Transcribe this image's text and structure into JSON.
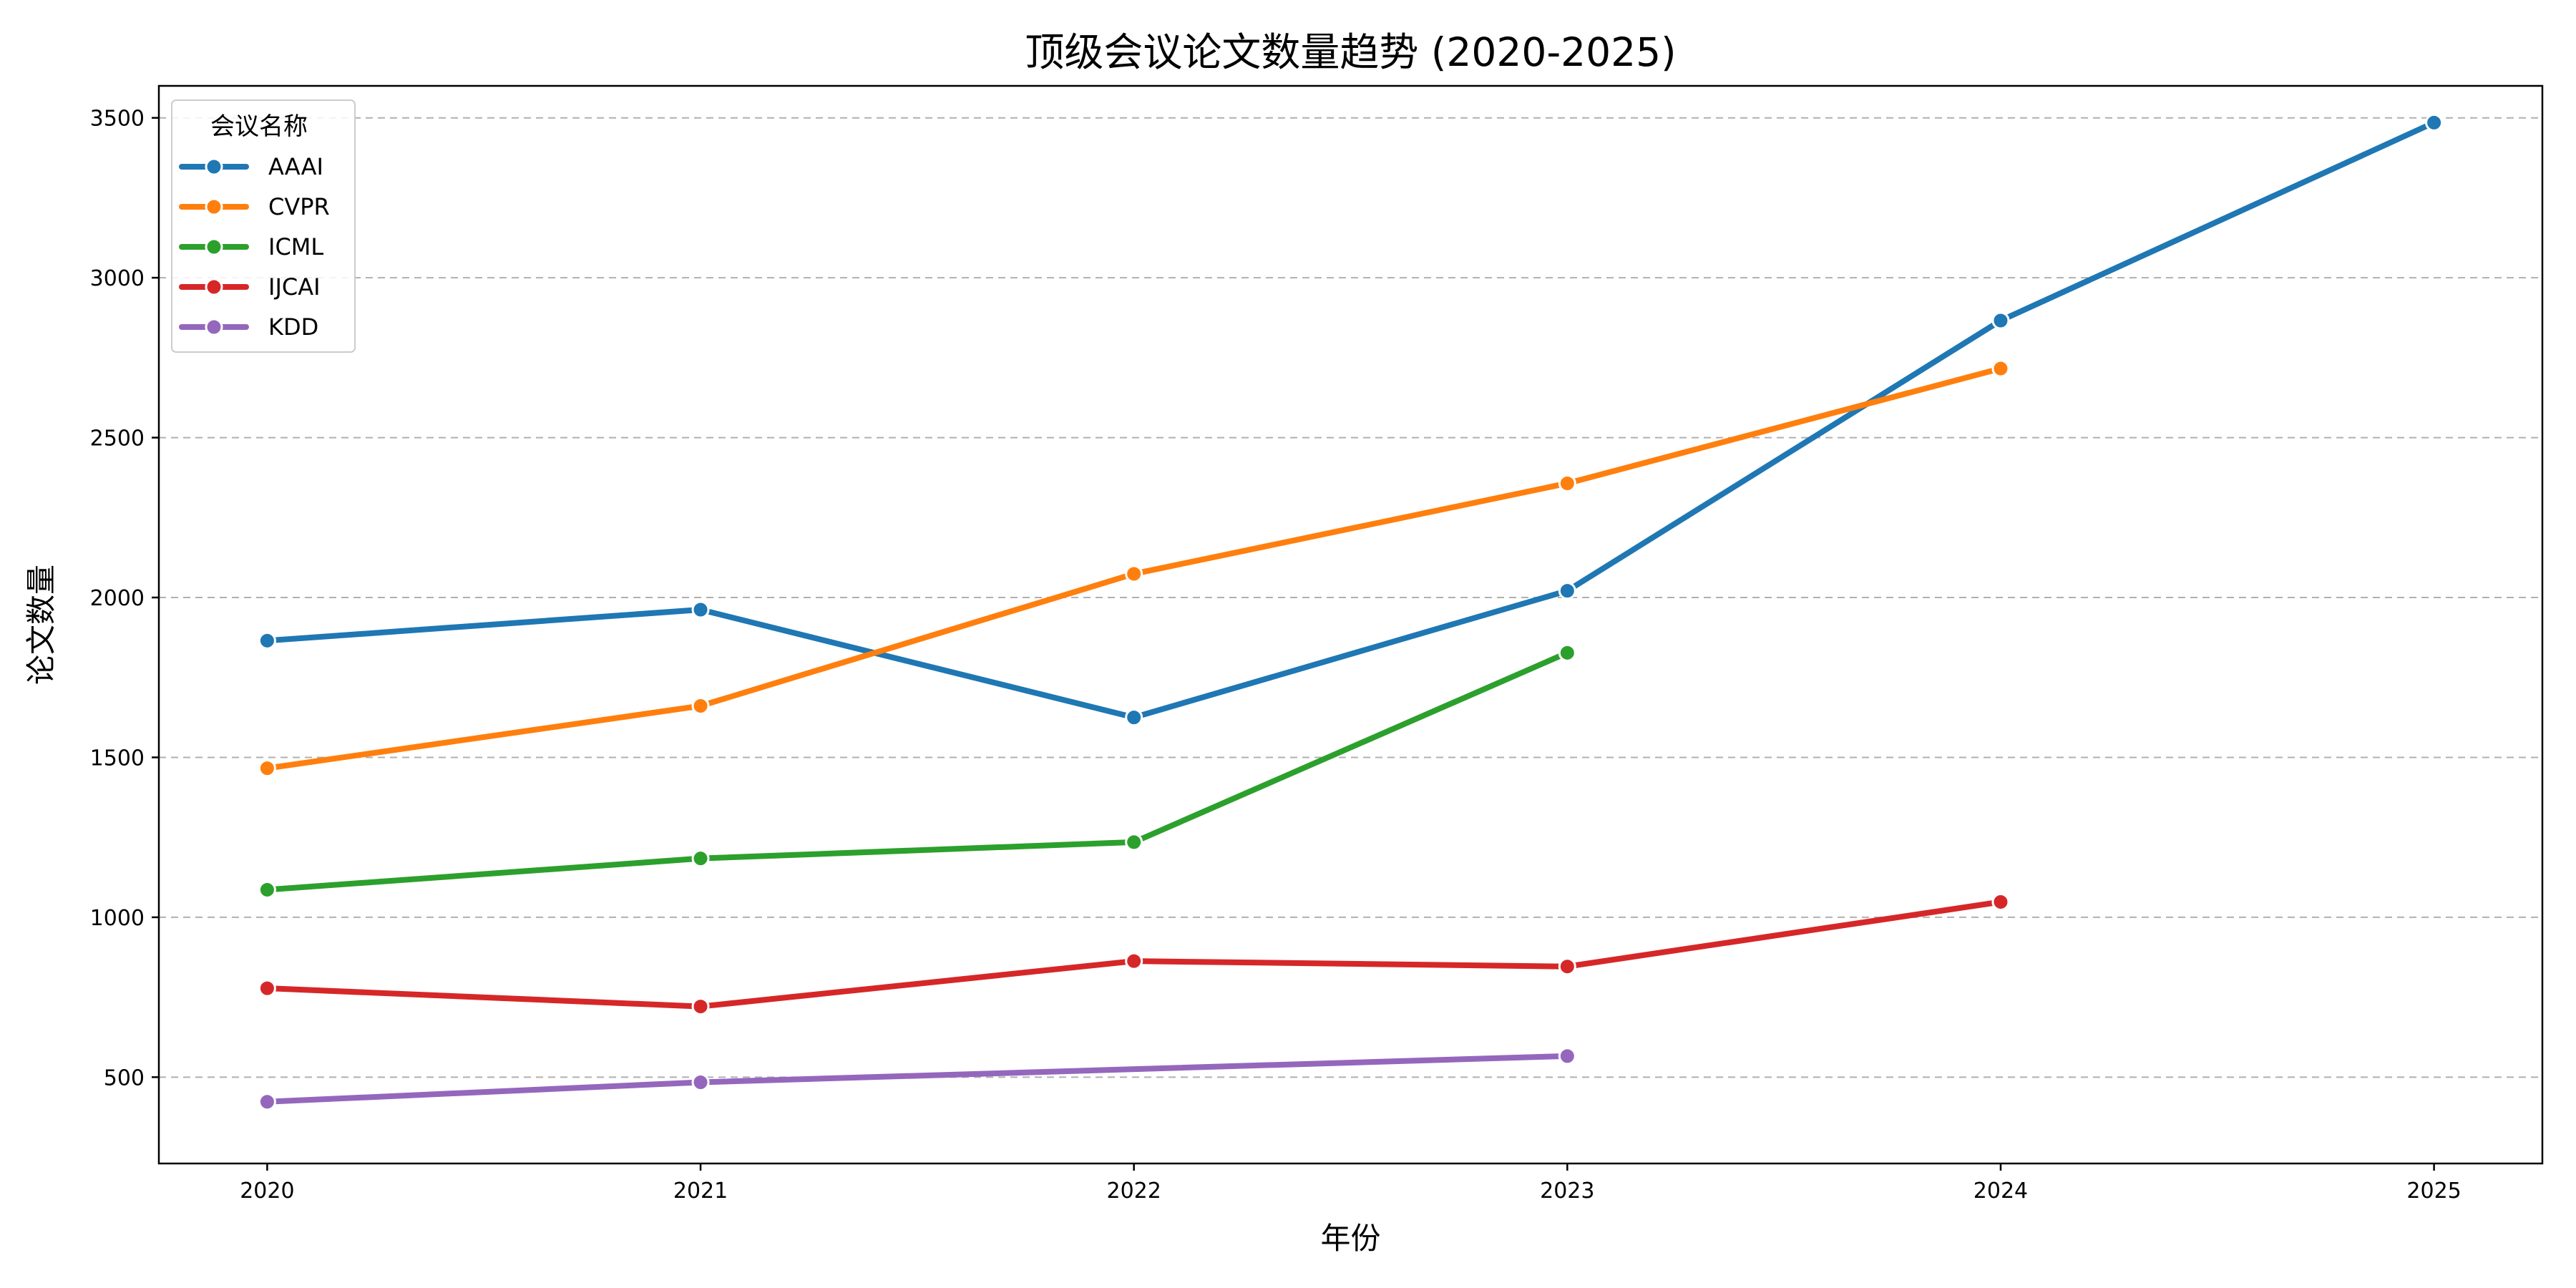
{
  "chart_data": {
    "type": "line",
    "title": "顶级会议论文数量趋势 (2020-2025)",
    "xlabel": "年份",
    "ylabel": "论文数量",
    "x": [
      2020,
      2021,
      2022,
      2023,
      2024,
      2025
    ],
    "x_tick_labels": [
      "2020",
      "2021",
      "2022",
      "2023",
      "2024",
      "2025"
    ],
    "xlim": [
      2019.75,
      2025.25
    ],
    "ylim": [
      230,
      3600
    ],
    "y_ticks": [
      500,
      1000,
      1500,
      2000,
      2500,
      3000,
      3500
    ],
    "y_tick_labels": [
      "500",
      "1000",
      "1500",
      "2000",
      "2500",
      "3000",
      "3500"
    ],
    "grid": "horizontal dashed",
    "legend": {
      "title": "会议名称",
      "placement": "top-left"
    },
    "series": [
      {
        "name": "AAAI",
        "color": "#1f77b4",
        "x": [
          2020,
          2021,
          2022,
          2023,
          2024,
          2025
        ],
        "values": [
          1865,
          1962,
          1625,
          2021,
          2866,
          3485
        ]
      },
      {
        "name": "CVPR",
        "color": "#ff7f0e",
        "x": [
          2020,
          2021,
          2022,
          2023,
          2024
        ],
        "values": [
          1466,
          1661,
          2074,
          2357,
          2716
        ]
      },
      {
        "name": "ICML",
        "color": "#2ca02c",
        "x": [
          2020,
          2021,
          2022,
          2023
        ],
        "values": [
          1086,
          1184,
          1235,
          1827
        ]
      },
      {
        "name": "IJCAI",
        "color": "#d62728",
        "x": [
          2020,
          2021,
          2022,
          2023,
          2024
        ],
        "values": [
          778,
          721,
          863,
          846,
          1048
        ]
      },
      {
        "name": "KDD",
        "color": "#9467bd",
        "x": [
          2020,
          2021,
          2023
        ],
        "values": [
          423,
          484,
          566
        ]
      }
    ]
  }
}
